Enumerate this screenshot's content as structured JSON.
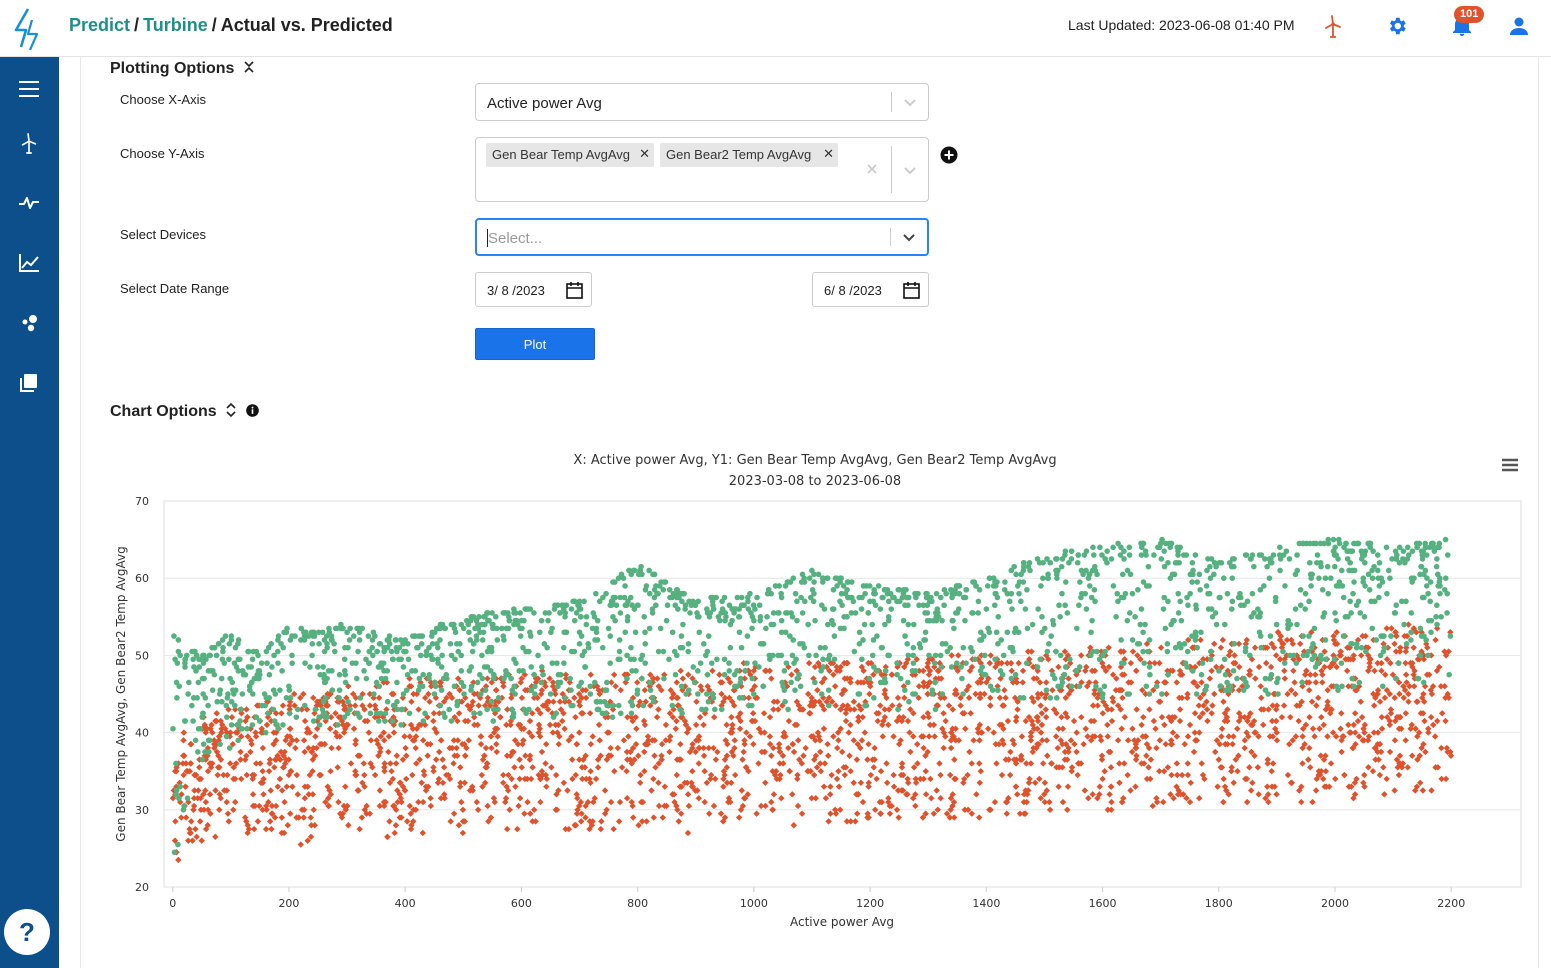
{
  "header": {
    "breadcrumb": [
      "Predict",
      "Turbine",
      "Actual vs. Predicted"
    ],
    "last_updated": "Last Updated: 2023-06-08 01:40 PM",
    "notification_count": "101"
  },
  "colors": {
    "sidebar": "#0d4f8b",
    "accent": "#1f8f8a",
    "plot_button": "#1a73e8",
    "series1": "#e0522c",
    "series2": "#55b17f"
  },
  "sidebar": {
    "items": [
      "menu-icon",
      "turbine-icon",
      "pulse-icon",
      "line-chart-icon",
      "scatter-icon",
      "library-icon"
    ],
    "help": "?"
  },
  "plotting_options": {
    "title": "Plotting Options",
    "x_axis_label": "Choose X-Axis",
    "x_axis_value": "Active power Avg",
    "y_axis_label": "Choose Y-Axis",
    "y_axis_tags": [
      "Gen Bear Temp AvgAvg",
      "Gen Bear2 Temp AvgAvg"
    ],
    "devices_label": "Select Devices",
    "devices_placeholder": "Select...",
    "date_label": "Select Date Range",
    "date_start": "3/ 8 /2023",
    "date_end": "6/ 8 /2023",
    "plot_button": "Plot"
  },
  "chart_options": {
    "title": "Chart Options"
  },
  "chart_data": {
    "type": "scatter",
    "title": "X: Active power Avg, Y1: Gen Bear Temp AvgAvg, Gen Bear2 Temp AvgAvg",
    "subtitle": "2023-03-08 to 2023-06-08",
    "xlabel": "Active power Avg",
    "ylabel": "Gen Bear Temp AvgAvg, Gen Bear2 Temp AvgAvg",
    "xlim": [
      -15,
      2320
    ],
    "ylim": [
      20,
      70
    ],
    "xticks": [
      0,
      200,
      400,
      600,
      800,
      1000,
      1200,
      1400,
      1600,
      1800,
      2000,
      2200
    ],
    "yticks": [
      20,
      30,
      40,
      50,
      60,
      70
    ],
    "grid": true,
    "legend": "none",
    "series": [
      {
        "color": "#e0522c",
        "marker": "diamond",
        "x": [
          0,
          50,
          100,
          150,
          200,
          250,
          300,
          400,
          500,
          600,
          700,
          800,
          900,
          1000,
          1100,
          1200,
          1300,
          1400,
          1500,
          1600,
          1700,
          1800,
          1900,
          2000,
          2100,
          2200
        ],
        "y_min": [
          22,
          26,
          27,
          27,
          24,
          27,
          27,
          26,
          27,
          27,
          27,
          27,
          27,
          28,
          28,
          28,
          29,
          29,
          29,
          30,
          30,
          30,
          30,
          31,
          32,
          32
        ],
        "y_max": [
          40,
          42,
          43,
          44,
          45,
          46,
          46,
          47,
          47,
          48,
          48,
          48,
          48,
          49,
          49,
          49,
          50,
          50,
          51,
          51,
          52,
          52,
          53,
          53,
          54,
          54
        ]
      },
      {
        "color": "#55b17f",
        "marker": "circle",
        "x": [
          0,
          50,
          100,
          150,
          200,
          250,
          300,
          400,
          500,
          600,
          700,
          800,
          900,
          1000,
          1100,
          1200,
          1300,
          1400,
          1500,
          1600,
          1700,
          1800,
          1900,
          2000,
          2100,
          2200
        ],
        "y_min": [
          22,
          36,
          38,
          39,
          40,
          40,
          41,
          41,
          41,
          42,
          42,
          42,
          42,
          43,
          43,
          43,
          43,
          44,
          44,
          44,
          44,
          45,
          45,
          45,
          46,
          47
        ],
        "y_max": [
          53,
          50,
          53,
          50,
          54,
          53,
          54,
          52,
          55,
          56,
          57,
          62,
          57,
          58,
          61,
          59,
          58,
          60,
          63,
          64,
          65,
          62,
          64,
          65,
          64,
          65
        ]
      }
    ]
  }
}
